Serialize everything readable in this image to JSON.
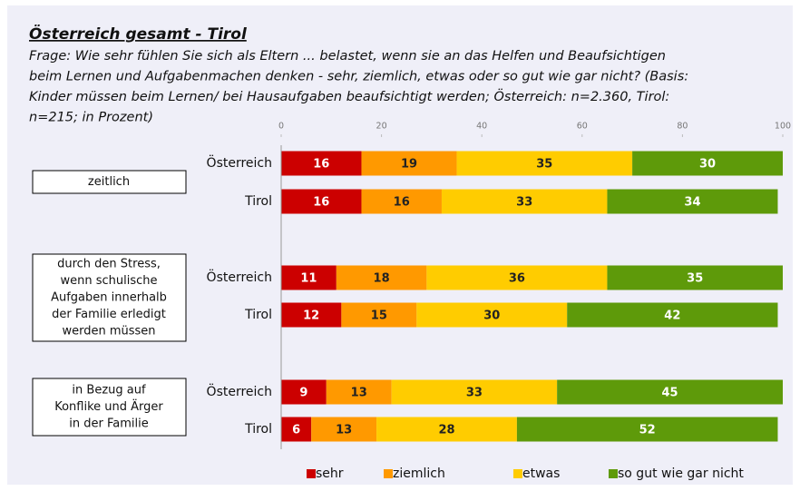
{
  "chart_data": {
    "type": "stacked_bar_horizontal",
    "title": "Österreich gesamt - Tirol",
    "subtitle_lines": [
      "Frage: Wie sehr fühlen Sie sich als Eltern ... belastet, wenn sie an das Helfen und Beaufsichtigen",
      "beim Lernen und Aufgabenmachen denken - sehr, ziemlich, etwas oder so gut wie gar nicht? (Basis:",
      "Kinder müssen beim Lernen/ bei Hausaufgaben beaufsichtigt werden; Österreich: n=2.360,  Tirol:",
      "n=215; in Prozent)"
    ],
    "groups": [
      {
        "lines": [
          "zeitlich"
        ]
      },
      {
        "lines": [
          "durch den Stress,",
          "wenn schulische",
          "Aufgaben innerhalb",
          "der Familie erledigt",
          "werden müssen"
        ]
      },
      {
        "lines": [
          "in Bezug auf",
          "Konflike und Ärger",
          "in der Familie"
        ]
      }
    ],
    "categories": [
      "Österreich",
      "Tirol",
      "Österreich",
      "Tirol",
      "Österreich",
      "Tirol"
    ],
    "series": [
      {
        "name": "sehr",
        "color": "#cc0000",
        "label_color": "#ffffff",
        "values": [
          16,
          16,
          11,
          12,
          9,
          6
        ]
      },
      {
        "name": "ziemlich",
        "color": "#ff9900",
        "label_color": "#222222",
        "values": [
          19,
          16,
          18,
          15,
          13,
          13
        ]
      },
      {
        "name": "etwas",
        "color": "#ffcc00",
        "label_color": "#222222",
        "values": [
          35,
          33,
          36,
          30,
          33,
          28
        ]
      },
      {
        "name": "so gut wie gar nicht",
        "color": "#5e9a0a",
        "label_color": "#ffffff",
        "values": [
          30,
          34,
          35,
          42,
          45,
          52
        ]
      }
    ],
    "xlim": [
      0,
      100
    ],
    "xticks": [
      0,
      20,
      40,
      60,
      80,
      100
    ]
  }
}
